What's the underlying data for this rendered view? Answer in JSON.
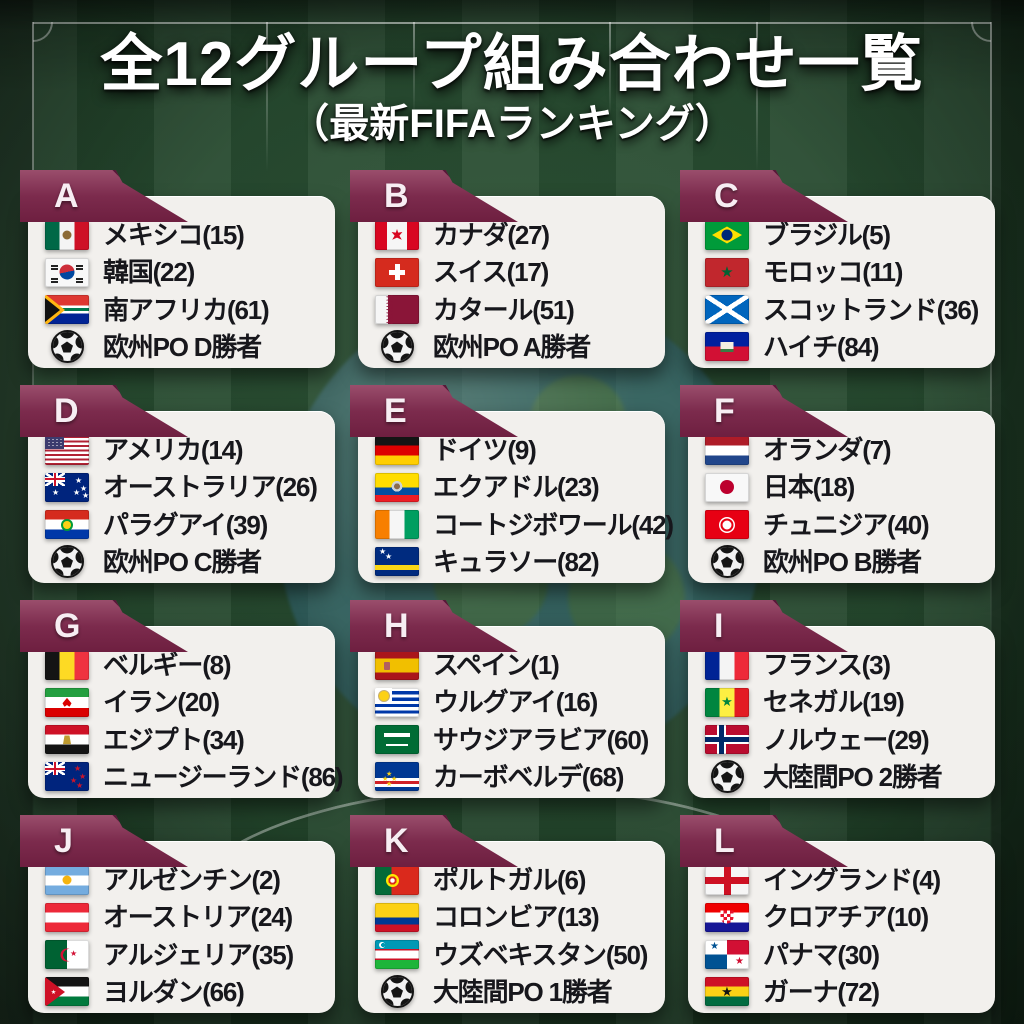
{
  "title": {
    "line1": "全12グループ組み合わせ一覧",
    "line2": "（最新FIFAランキング）"
  },
  "colors": {
    "ribbon_maroon": "#7c2b4d",
    "ribbon_fold": "#4a132c",
    "card_bg": "#f2f0ed",
    "field_green": "#24462c",
    "pitch_line_white": "#ffffff",
    "text_dark": "#17171c",
    "title_white": "#ffffff"
  },
  "icons": {
    "soccer_ball": "ball",
    "flag_style": "country-flag"
  },
  "groups": [
    {
      "letter": "A",
      "teams": [
        {
          "flag": "mexico",
          "label": "メキシコ(15)"
        },
        {
          "flag": "south-korea",
          "label": "韓国(22)"
        },
        {
          "flag": "south-africa",
          "label": "南アフリカ(61)"
        },
        {
          "flag": "ball",
          "label": "欧州PO D勝者"
        }
      ]
    },
    {
      "letter": "B",
      "teams": [
        {
          "flag": "canada",
          "label": "カナダ(27)"
        },
        {
          "flag": "switzerland",
          "label": "スイス(17)"
        },
        {
          "flag": "qatar",
          "label": "カタール(51)"
        },
        {
          "flag": "ball",
          "label": "欧州PO A勝者"
        }
      ]
    },
    {
      "letter": "C",
      "teams": [
        {
          "flag": "brazil",
          "label": "ブラジル(5)"
        },
        {
          "flag": "morocco",
          "label": "モロッコ(11)"
        },
        {
          "flag": "scotland",
          "label": "スコットランド(36)"
        },
        {
          "flag": "haiti",
          "label": "ハイチ(84)"
        }
      ]
    },
    {
      "letter": "D",
      "teams": [
        {
          "flag": "usa",
          "label": "アメリカ(14)"
        },
        {
          "flag": "australia",
          "label": "オーストラリア(26)"
        },
        {
          "flag": "paraguay",
          "label": "パラグアイ(39)"
        },
        {
          "flag": "ball",
          "label": "欧州PO C勝者"
        }
      ]
    },
    {
      "letter": "E",
      "teams": [
        {
          "flag": "germany",
          "label": "ドイツ(9)"
        },
        {
          "flag": "ecuador",
          "label": "エクアドル(23)"
        },
        {
          "flag": "ivory-coast",
          "label": "コートジボワール(42)"
        },
        {
          "flag": "curacao",
          "label": "キュラソー(82)"
        }
      ]
    },
    {
      "letter": "F",
      "teams": [
        {
          "flag": "netherlands",
          "label": "オランダ(7)"
        },
        {
          "flag": "japan",
          "label": "日本(18)"
        },
        {
          "flag": "tunisia",
          "label": "チュニジア(40)"
        },
        {
          "flag": "ball",
          "label": "欧州PO B勝者"
        }
      ]
    },
    {
      "letter": "G",
      "teams": [
        {
          "flag": "belgium",
          "label": "ベルギー(8)"
        },
        {
          "flag": "iran",
          "label": "イラン(20)"
        },
        {
          "flag": "egypt",
          "label": "エジプト(34)"
        },
        {
          "flag": "new-zealand",
          "label": "ニュージーランド(86)"
        }
      ]
    },
    {
      "letter": "H",
      "teams": [
        {
          "flag": "spain",
          "label": "スペイン(1)"
        },
        {
          "flag": "uruguay",
          "label": "ウルグアイ(16)"
        },
        {
          "flag": "saudi-arabia",
          "label": "サウジアラビア(60)"
        },
        {
          "flag": "cape-verde",
          "label": "カーボベルデ(68)"
        }
      ]
    },
    {
      "letter": "I",
      "teams": [
        {
          "flag": "france",
          "label": "フランス(3)"
        },
        {
          "flag": "senegal",
          "label": "セネガル(19)"
        },
        {
          "flag": "norway",
          "label": "ノルウェー(29)"
        },
        {
          "flag": "ball",
          "label": "大陸間PO 2勝者"
        }
      ]
    },
    {
      "letter": "J",
      "teams": [
        {
          "flag": "argentina",
          "label": "アルゼンチン(2)"
        },
        {
          "flag": "austria",
          "label": "オーストリア(24)"
        },
        {
          "flag": "algeria",
          "label": "アルジェリア(35)"
        },
        {
          "flag": "jordan",
          "label": "ヨルダン(66)"
        }
      ]
    },
    {
      "letter": "K",
      "teams": [
        {
          "flag": "portugal",
          "label": "ポルトガル(6)"
        },
        {
          "flag": "colombia",
          "label": "コロンビア(13)"
        },
        {
          "flag": "uzbekistan",
          "label": "ウズベキスタン(50)"
        },
        {
          "flag": "ball",
          "label": "大陸間PO 1勝者"
        }
      ]
    },
    {
      "letter": "L",
      "teams": [
        {
          "flag": "england",
          "label": "イングランド(4)"
        },
        {
          "flag": "croatia",
          "label": "クロアチア(10)"
        },
        {
          "flag": "panama",
          "label": "パナマ(30)"
        },
        {
          "flag": "ghana",
          "label": "ガーナ(72)"
        }
      ]
    }
  ]
}
